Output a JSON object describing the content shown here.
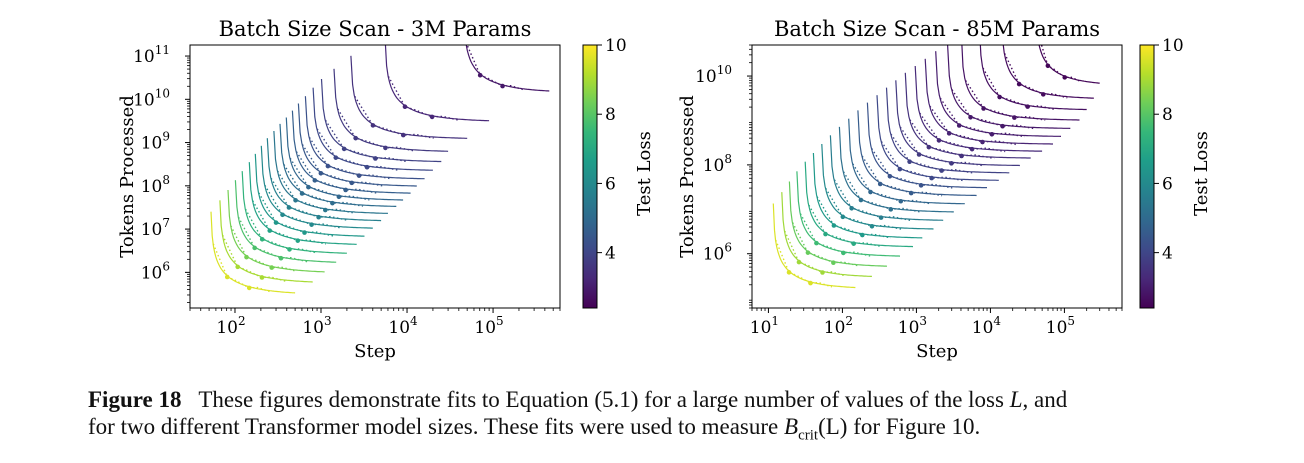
{
  "chart_data": [
    {
      "type": "line",
      "title": "Batch Size Scan - 3M Params",
      "xlabel": "Step",
      "ylabel": "Tokens Processed",
      "xscale": "log",
      "yscale": "log",
      "xlim": [
        30,
        600000
      ],
      "ylim": [
        150000,
        180000000000
      ],
      "xticks": [
        {
          "value": 100,
          "base": "10",
          "exp": "2"
        },
        {
          "value": 1000,
          "base": "10",
          "exp": "3"
        },
        {
          "value": 10000,
          "base": "10",
          "exp": "4"
        },
        {
          "value": 100000,
          "base": "10",
          "exp": "5"
        }
      ],
      "yticks": [
        {
          "value": 1000000,
          "base": "10",
          "exp": "6"
        },
        {
          "value": 10000000,
          "base": "10",
          "exp": "7"
        },
        {
          "value": 100000000,
          "base": "10",
          "exp": "8"
        },
        {
          "value": 1000000000,
          "base": "10",
          "exp": "9"
        },
        {
          "value": 10000000000,
          "base": "10",
          "exp": "10"
        },
        {
          "value": 100000000000,
          "base": "10",
          "exp": "11"
        }
      ],
      "colorbar": {
        "label": "Test Loss",
        "colormap": "viridis",
        "range": [
          2.4,
          10.0
        ],
        "ticks": [
          "4",
          "6",
          "8",
          "10"
        ]
      },
      "series_generation": "fit curves of Equation (5.1): E = E_min (1 + S_min / (S - S_min)); one curve per loss value, with measured points (dots) and dotted connecting data",
      "series": [
        {
          "loss": 2.9,
          "S_min": 45000,
          "E_min": 14000000000,
          "S_max": 450000
        },
        {
          "loss": 3.25,
          "S_min": 5500,
          "E_min": 3000000000,
          "S_max": 90000
        },
        {
          "loss": 3.5,
          "S_min": 2200,
          "E_min": 1200000000,
          "S_max": 50000
        },
        {
          "loss": 3.7,
          "S_min": 1400,
          "E_min": 600000000,
          "S_max": 30000
        },
        {
          "loss": 3.9,
          "S_min": 1000,
          "E_min": 350000000,
          "S_max": 25000
        },
        {
          "loss": 4.1,
          "S_min": 800,
          "E_min": 220000000,
          "S_max": 20000
        },
        {
          "loss": 4.3,
          "S_min": 650,
          "E_min": 140000000,
          "S_max": 16000
        },
        {
          "loss": 4.5,
          "S_min": 540,
          "E_min": 95000000,
          "S_max": 13000
        },
        {
          "loss": 4.7,
          "S_min": 460,
          "E_min": 65000000,
          "S_max": 11000
        },
        {
          "loss": 4.9,
          "S_min": 390,
          "E_min": 45000000,
          "S_max": 9000
        },
        {
          "loss": 5.1,
          "S_min": 330,
          "E_min": 32000000,
          "S_max": 7500
        },
        {
          "loss": 5.4,
          "S_min": 280,
          "E_min": 22000000,
          "S_max": 6000
        },
        {
          "loss": 5.7,
          "S_min": 235,
          "E_min": 15000000,
          "S_max": 5000
        },
        {
          "loss": 6.0,
          "S_min": 200,
          "E_min": 10000000,
          "S_max": 4000
        },
        {
          "loss": 6.4,
          "S_min": 170,
          "E_min": 6500000,
          "S_max": 3200
        },
        {
          "loss": 6.8,
          "S_min": 145,
          "E_min": 4200000,
          "S_max": 2600
        },
        {
          "loss": 7.3,
          "S_min": 120,
          "E_min": 2600000,
          "S_max": 2000
        },
        {
          "loss": 7.8,
          "S_min": 100,
          "E_min": 1600000,
          "S_max": 1500
        },
        {
          "loss": 8.4,
          "S_min": 82,
          "E_min": 950000,
          "S_max": 1100
        },
        {
          "loss": 9.0,
          "S_min": 66,
          "E_min": 550000,
          "S_max": 800
        },
        {
          "loss": 9.6,
          "S_min": 52,
          "E_min": 300000,
          "S_max": 500
        }
      ]
    },
    {
      "type": "line",
      "title": "Batch Size Scan - 85M Params",
      "xlabel": "Step",
      "ylabel": "Tokens Processed",
      "xscale": "log",
      "yscale": "log",
      "xlim": [
        6,
        600000
      ],
      "ylim": [
        60000,
        50000000000
      ],
      "xticks": [
        {
          "value": 10,
          "base": "10",
          "exp": "1"
        },
        {
          "value": 100,
          "base": "10",
          "exp": "2"
        },
        {
          "value": 1000,
          "base": "10",
          "exp": "3"
        },
        {
          "value": 10000,
          "base": "10",
          "exp": "4"
        },
        {
          "value": 100000,
          "base": "10",
          "exp": "5"
        }
      ],
      "yticks": [
        {
          "value": 1000000,
          "base": "10",
          "exp": "6"
        },
        {
          "value": 100000000,
          "base": "10",
          "exp": "8"
        },
        {
          "value": 10000000000,
          "base": "10",
          "exp": "10"
        }
      ],
      "colorbar": {
        "label": "Test Loss",
        "colormap": "viridis",
        "range": [
          2.4,
          10.0
        ],
        "ticks": [
          "4",
          "6",
          "8",
          "10"
        ]
      },
      "series_generation": "fit curves of Equation (5.1): E = E_min (1 + S_min / (S - S_min)); one curve per loss value, with measured points (dots) and dotted connecting data",
      "series": [
        {
          "loss": 2.5,
          "S_min": 40000,
          "E_min": 6000000000,
          "S_max": 300000
        },
        {
          "loss": 2.6,
          "S_min": 14000,
          "E_min": 3000000000,
          "S_max": 250000
        },
        {
          "loss": 2.7,
          "S_min": 7000,
          "E_min": 1700000000,
          "S_max": 200000
        },
        {
          "loss": 2.8,
          "S_min": 4000,
          "E_min": 1000000000,
          "S_max": 160000
        },
        {
          "loss": 2.9,
          "S_min": 2600,
          "E_min": 650000000,
          "S_max": 120000
        },
        {
          "loss": 3.0,
          "S_min": 1800,
          "E_min": 430000000,
          "S_max": 90000
        },
        {
          "loss": 3.15,
          "S_min": 1300,
          "E_min": 290000000,
          "S_max": 70000
        },
        {
          "loss": 3.3,
          "S_min": 950,
          "E_min": 200000000,
          "S_max": 50000
        },
        {
          "loss": 3.5,
          "S_min": 700,
          "E_min": 140000000,
          "S_max": 35000
        },
        {
          "loss": 3.7,
          "S_min": 520,
          "E_min": 95000000,
          "S_max": 25000
        },
        {
          "loss": 3.9,
          "S_min": 390,
          "E_min": 65000000,
          "S_max": 18000
        },
        {
          "loss": 4.1,
          "S_min": 290,
          "E_min": 44000000,
          "S_max": 13000
        },
        {
          "loss": 4.35,
          "S_min": 215,
          "E_min": 30000000,
          "S_max": 9000
        },
        {
          "loss": 4.6,
          "S_min": 160,
          "E_min": 20000000,
          "S_max": 6500
        },
        {
          "loss": 4.9,
          "S_min": 120,
          "E_min": 13000000,
          "S_max": 4500
        },
        {
          "loss": 5.2,
          "S_min": 90,
          "E_min": 8500000,
          "S_max": 3200
        },
        {
          "loss": 5.6,
          "S_min": 68,
          "E_min": 5500000,
          "S_max": 2300
        },
        {
          "loss": 6.0,
          "S_min": 52,
          "E_min": 3500000,
          "S_max": 1700
        },
        {
          "loss": 6.5,
          "S_min": 40,
          "E_min": 2200000,
          "S_max": 1200
        },
        {
          "loss": 7.0,
          "S_min": 31,
          "E_min": 1400000,
          "S_max": 900
        },
        {
          "loss": 7.6,
          "S_min": 24,
          "E_min": 850000,
          "S_max": 600
        },
        {
          "loss": 8.2,
          "S_min": 19,
          "E_min": 500000,
          "S_max": 400
        },
        {
          "loss": 8.9,
          "S_min": 15,
          "E_min": 290000,
          "S_max": 250
        },
        {
          "loss": 9.6,
          "S_min": 11.5,
          "E_min": 160000,
          "S_max": 150
        }
      ]
    }
  ],
  "caption": {
    "label": "Figure 18",
    "line1": "These figures demonstrate fits to Equation (5.1) for a large number of values of the loss ",
    "L": "L",
    "line1_end": ", and",
    "line2": "for two different Transformer model sizes. These fits were used to measure ",
    "B": "B",
    "sub": "crit",
    "paren": "(L)",
    "line2_end": " for Figure 10."
  }
}
